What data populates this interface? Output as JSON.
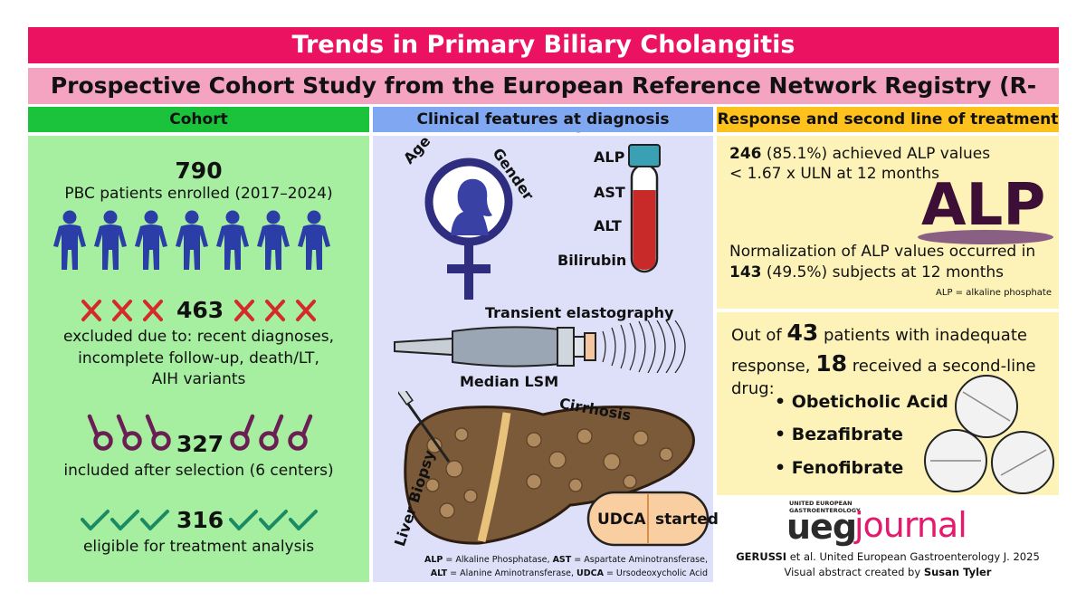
{
  "title": "Trends in Primary Biliary Cholangitis",
  "subtitle": "Prospective Cohort Study from the European Reference Network Registry (R-LIVER)",
  "columns": {
    "cohort": "Cohort",
    "clinical": "Clinical features at diagnosis",
    "response": "Response and second line of treatment"
  },
  "cohort": {
    "enrolled_count": "790",
    "enrolled_text": "PBC patients enrolled (2017–2024)",
    "excluded_count": "463",
    "excluded_text_1": "excluded due to: recent diagnoses,",
    "excluded_text_2": "incomplete follow-up, death/LT,",
    "excluded_text_3": "AIH variants",
    "included_count": "327",
    "included_text": "included after selection (6 centers)",
    "eligible_count": "316",
    "eligible_text": "eligible for treatment analysis"
  },
  "clinical": {
    "age": "Age",
    "gender": "Gender",
    "labs": [
      "ALP",
      "AST",
      "ALT",
      "Bilirubin"
    ],
    "elastography": "Transient elastography",
    "lsm": "Median LSM",
    "cirrhosis": "Cirrhosis",
    "biopsy": "Liver Biopsy",
    "udca": "UDCA",
    "started": "started",
    "abbrev_1a": "ALP",
    "abbrev_1b": " = Alkaline Phosphatase, ",
    "abbrev_1c": "AST",
    "abbrev_1d": " = Aspartate Aminotransferase,",
    "abbrev_2a": "ALT",
    "abbrev_2b": " = Alanine Aminotransferase, ",
    "abbrev_2c": "UDCA",
    "abbrev_2d": " = Ursodeoxycholic Acid"
  },
  "response": {
    "achieved_num": "246",
    "achieved_rest": " (85.1%) achieved ALP values",
    "achieved_line2": "< 1.67 x ULN at 12 months",
    "alp_big": "ALP",
    "normal_line1": "Normalization of ALP values occurred in",
    "normal_num": "143",
    "normal_rest": " (49.5%) subjects at 12 months",
    "alp_note": "ALP = alkaline phosphate",
    "out_of": "Out of ",
    "inadequate_num": "43",
    "out_rest": " patients with inadequate",
    "response_word": "response, ",
    "second_num": "18",
    "second_rest": " received a second-line",
    "drug_word": "drug:",
    "drugs": [
      "Obeticholic Acid",
      "Bezafibrate",
      "Fenofibrate"
    ]
  },
  "journal": {
    "ueg_small_1": "UNITED EUROPEAN",
    "ueg_small_2": "GASTROENTEROLOGY",
    "ueg": "ueg",
    "journal": "journal",
    "citation_author": "GERUSSI",
    "citation_rest": " et al. United European Gastroenterology J. 2025",
    "credit_text": "Visual abstract created by ",
    "credit_name": "Susan Tyler"
  }
}
